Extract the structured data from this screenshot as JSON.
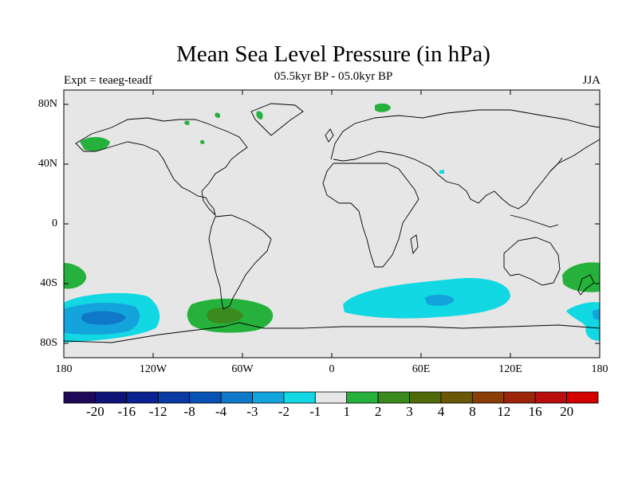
{
  "title": "Mean Sea Level Pressure (in hPa)",
  "subtitle": "05.5kyr BP - 05.0kyr BP",
  "left_label": "Expt = teaeg-teadf",
  "right_label": "JJA",
  "y_ticks": [
    "80N",
    "40N",
    "0",
    "40S",
    "80S"
  ],
  "x_ticks": [
    "180",
    "120W",
    "60W",
    "0",
    "60E",
    "120E",
    "180"
  ],
  "colorbar": {
    "colors": [
      "#1f0a5a",
      "#0e1477",
      "#0b2391",
      "#0a3aa3",
      "#0752b3",
      "#0f78c8",
      "#14a4dc",
      "#12d8e4",
      "#e6e6e6",
      "#25b13b",
      "#3a8a1e",
      "#4f6b09",
      "#6a5806",
      "#8a3e07",
      "#9c2409",
      "#b80e0e",
      "#d40000"
    ],
    "labels": [
      "-20",
      "-16",
      "-12",
      "-8",
      "-4",
      "-3",
      "-2",
      "-1",
      "1",
      "2",
      "3",
      "4",
      "8",
      "12",
      "16",
      "20"
    ]
  }
}
